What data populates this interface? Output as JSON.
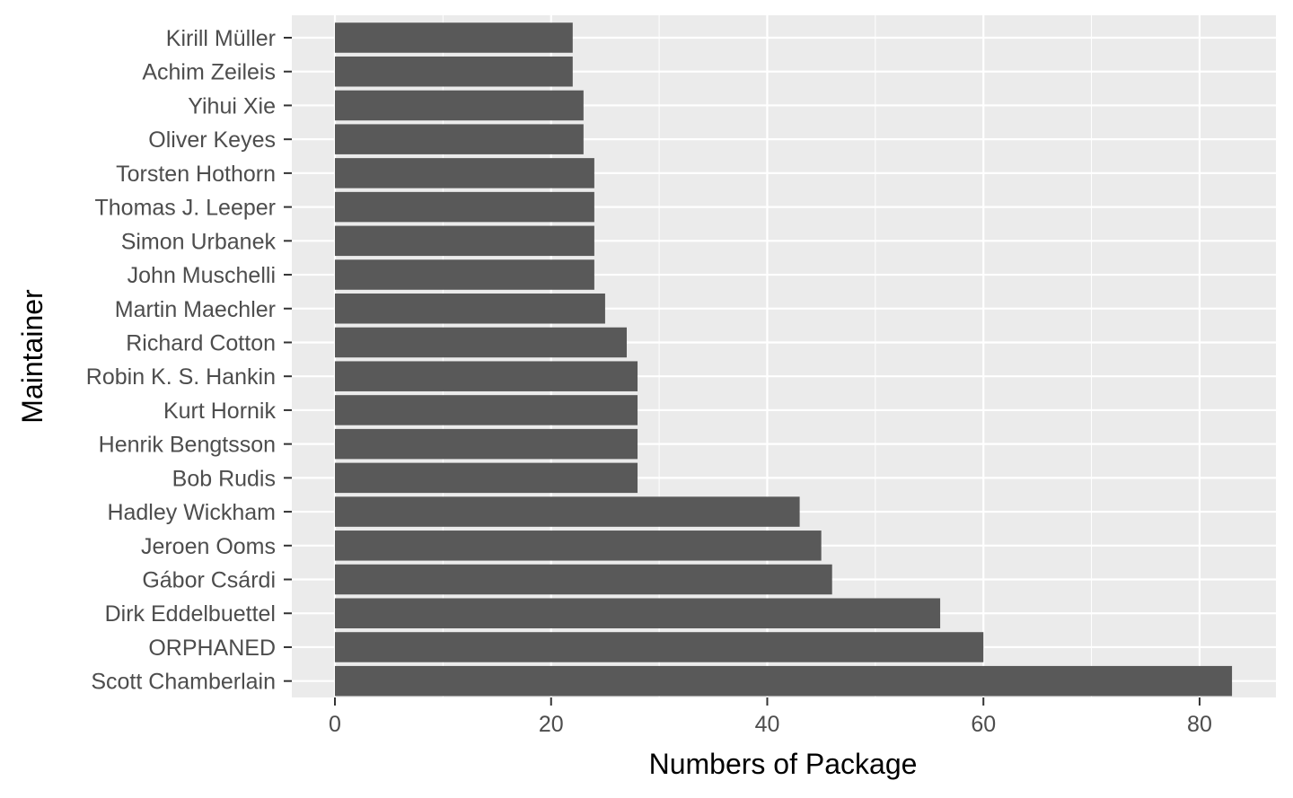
{
  "chart_data": {
    "type": "bar",
    "orientation": "horizontal",
    "title": "",
    "xlabel": "Numbers of Package",
    "ylabel": "Maintainer",
    "xlim": [
      -2,
      87
    ],
    "xticks": [
      0,
      20,
      40,
      60,
      80
    ],
    "xtick_labels": [
      "0",
      "20",
      "40",
      "60",
      "80"
    ],
    "grid": true,
    "legend": "none",
    "colors": {
      "panel": "#ebebeb",
      "grid": "#ffffff",
      "bar": "#595959",
      "tick": "#333333"
    },
    "categories": [
      "Kirill Müller",
      "Achim Zeileis",
      "Yihui Xie",
      "Oliver Keyes",
      "Torsten Hothorn",
      "Thomas J. Leeper",
      "Simon Urbanek",
      "John Muschelli",
      "Martin Maechler",
      "Richard Cotton",
      "Robin K. S. Hankin",
      "Kurt Hornik",
      "Henrik Bengtsson",
      "Bob Rudis",
      "Hadley Wickham",
      "Jeroen Ooms",
      "Gábor Csárdi",
      "Dirk Eddelbuettel",
      "ORPHANED",
      "Scott Chamberlain"
    ],
    "values": [
      22,
      22,
      23,
      23,
      24,
      24,
      24,
      24,
      25,
      27,
      28,
      28,
      28,
      28,
      43,
      45,
      46,
      56,
      60,
      83
    ]
  }
}
